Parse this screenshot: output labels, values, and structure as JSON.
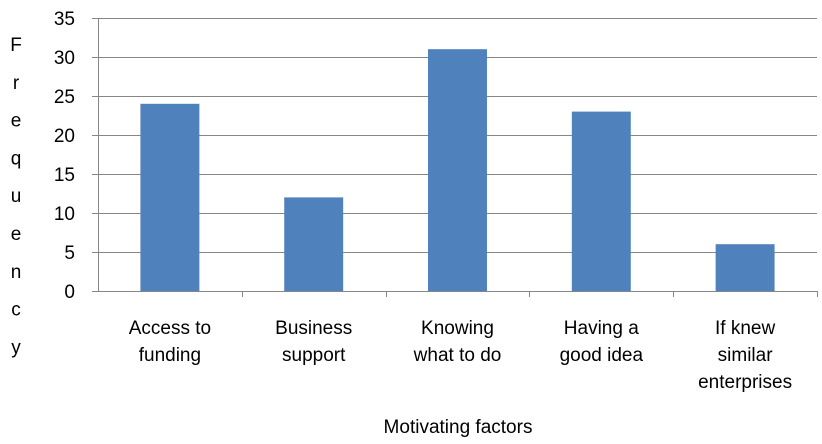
{
  "chart_data": {
    "type": "bar",
    "categories": [
      [
        "Access to",
        "funding"
      ],
      [
        "Business",
        "support"
      ],
      [
        "Knowing",
        "what to do"
      ],
      [
        "Having a",
        "good idea"
      ],
      [
        "If knew",
        "similar",
        "enterprises"
      ]
    ],
    "values": [
      24,
      12,
      31,
      23,
      6
    ],
    "xlabel": "Motivating factors",
    "ylabel": "Frequency",
    "ylim": [
      0,
      35
    ],
    "yticks": [
      "0",
      "5",
      "10",
      "15",
      "20",
      "25",
      "30",
      "35"
    ],
    "grid": true,
    "legend": "none",
    "colors": {
      "bar": "#4f81bd",
      "grid": "#868686",
      "axis": "#868686"
    }
  }
}
